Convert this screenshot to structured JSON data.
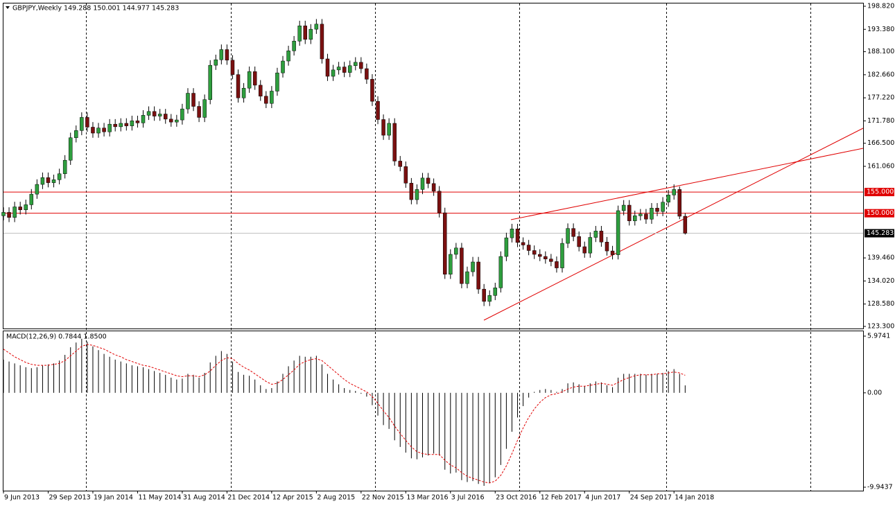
{
  "chart_data": [
    {
      "type": "candlestick",
      "title": "GBPJPY,Weekly  149.288 150.001 144.977 145.283",
      "categories": [
        "9 Jun 2013",
        null,
        null,
        null,
        null,
        null,
        null,
        null,
        "29 Sep 2013",
        null,
        null,
        null,
        null,
        null,
        null,
        null,
        "19 Jan 2014",
        null,
        null,
        null,
        null,
        null,
        null,
        null,
        "11 May 2014",
        null,
        null,
        null,
        null,
        null,
        null,
        null,
        "31 Aug 2014",
        null,
        null,
        null,
        null,
        null,
        null,
        null,
        "21 Dec 2014",
        null,
        null,
        null,
        null,
        null,
        null,
        null,
        "12 Apr 2015",
        null,
        null,
        null,
        null,
        null,
        null,
        null,
        "2 Aug 2015",
        null,
        null,
        null,
        null,
        null,
        null,
        null,
        "22 Nov 2015",
        null,
        null,
        null,
        null,
        null,
        null,
        null,
        "13 Mar 2016",
        null,
        null,
        null,
        null,
        null,
        null,
        null,
        "3 Jul 2016",
        null,
        null,
        null,
        null,
        null,
        null,
        null,
        "23 Oct 2016",
        null,
        null,
        null,
        null,
        null,
        null,
        null,
        "12 Feb 2017",
        null,
        null,
        null,
        null,
        null,
        null,
        null,
        "4 Jun 2017",
        null,
        null,
        null,
        null,
        null,
        null,
        null,
        "24 Sep 2017",
        null,
        null,
        null,
        null,
        null,
        null,
        null,
        "14 Jan 2018",
        null,
        null
      ],
      "open": [
        149.4,
        150.2,
        149.0,
        151.5,
        150.8,
        152.0,
        154.5,
        156.8,
        158.4,
        157.2,
        157.9,
        159.3,
        162.5,
        167.8,
        169.5,
        172.6,
        170.3,
        168.9,
        170.1,
        169.2,
        171.0,
        170.4,
        171.2,
        170.6,
        171.8,
        171.3,
        173.1,
        174.0,
        172.9,
        173.4,
        172.2,
        171.5,
        172.0,
        174.6,
        178.3,
        175.2,
        172.6,
        176.8,
        184.9,
        186.2,
        188.6,
        186.1,
        182.7,
        177.2,
        179.5,
        183.4,
        180.2,
        177.6,
        175.9,
        178.8,
        183.1,
        185.9,
        188.3,
        190.6,
        194.2,
        191.0,
        193.4,
        194.6,
        186.4,
        182.3,
        183.8,
        184.5,
        183.2,
        184.8,
        185.6,
        184.1,
        181.6,
        176.4,
        172.1,
        168.4,
        171.2,
        162.3,
        161.0,
        157.1,
        153.2,
        155.6,
        158.3,
        157.0,
        155.2,
        150.1,
        135.6,
        140.3,
        141.8,
        133.4,
        136.2,
        138.5,
        132.1,
        129.2,
        130.6,
        132.4,
        139.8,
        144.2,
        146.3,
        143.1,
        142.5,
        141.2,
        140.3,
        139.8,
        139.2,
        138.6,
        137.1,
        142.9,
        146.4,
        144.5,
        142.1,
        140.6,
        144.3,
        145.8,
        143.2,
        141.1,
        140.2,
        150.6,
        151.9,
        148.2,
        149.4,
        149.8,
        148.6,
        151.2,
        150.4,
        152.6,
        154.3,
        155.6,
        149.288
      ],
      "high": [
        151.4,
        151.4,
        152.7,
        152.7,
        153.2,
        155.7,
        158.0,
        159.6,
        159.6,
        159.1,
        160.5,
        163.7,
        169.0,
        170.7,
        173.8,
        173.8,
        171.5,
        171.3,
        171.3,
        172.2,
        172.2,
        172.4,
        172.4,
        173.0,
        173.0,
        174.3,
        175.2,
        175.2,
        174.6,
        174.6,
        173.4,
        173.2,
        175.8,
        179.5,
        179.5,
        176.4,
        178.0,
        186.1,
        187.4,
        189.8,
        189.8,
        187.3,
        183.9,
        180.7,
        184.6,
        184.6,
        181.4,
        178.8,
        180.0,
        184.3,
        187.1,
        189.5,
        191.8,
        195.4,
        195.4,
        194.6,
        195.8,
        195.8,
        187.6,
        185.0,
        185.7,
        185.7,
        186.0,
        186.8,
        186.8,
        185.3,
        182.8,
        177.6,
        173.3,
        172.4,
        172.4,
        163.5,
        162.2,
        158.3,
        156.8,
        159.5,
        159.5,
        158.2,
        156.4,
        151.3,
        141.5,
        143.0,
        143.0,
        137.4,
        139.7,
        139.7,
        133.3,
        131.8,
        133.6,
        141.0,
        145.4,
        147.5,
        147.5,
        144.3,
        143.7,
        142.4,
        141.5,
        141.0,
        140.4,
        139.8,
        144.1,
        147.6,
        147.6,
        145.7,
        143.3,
        145.5,
        147.0,
        147.0,
        144.4,
        142.3,
        151.8,
        153.1,
        153.1,
        150.6,
        151.0,
        151.0,
        152.4,
        152.4,
        153.8,
        155.5,
        156.8,
        156.3,
        150.001
      ],
      "low": [
        148.3,
        147.9,
        147.9,
        149.7,
        149.7,
        150.9,
        153.4,
        155.7,
        156.1,
        156.1,
        156.8,
        158.2,
        161.4,
        166.7,
        168.4,
        169.2,
        167.8,
        167.8,
        168.1,
        168.1,
        169.3,
        169.3,
        169.5,
        169.5,
        170.2,
        170.2,
        172.0,
        171.8,
        171.8,
        171.1,
        170.4,
        170.4,
        170.9,
        173.5,
        174.1,
        171.5,
        171.5,
        175.7,
        183.8,
        185.1,
        185.0,
        181.6,
        176.1,
        176.1,
        178.4,
        179.1,
        176.5,
        174.8,
        174.8,
        177.7,
        182.0,
        184.8,
        187.2,
        189.5,
        189.9,
        189.9,
        192.3,
        185.3,
        181.2,
        181.2,
        182.7,
        182.1,
        182.1,
        183.7,
        183.0,
        180.5,
        175.3,
        171.0,
        167.3,
        167.3,
        161.2,
        159.9,
        156.0,
        152.1,
        152.1,
        154.5,
        155.9,
        154.1,
        149.0,
        134.5,
        134.5,
        139.2,
        132.3,
        132.3,
        135.1,
        131.0,
        128.1,
        128.1,
        129.5,
        131.3,
        138.7,
        143.1,
        142.0,
        141.4,
        140.1,
        139.2,
        138.7,
        138.1,
        137.5,
        136.0,
        136.0,
        141.8,
        143.4,
        141.0,
        139.5,
        139.5,
        143.2,
        142.1,
        140.0,
        139.1,
        139.1,
        149.5,
        147.1,
        147.1,
        148.3,
        147.5,
        147.5,
        149.3,
        149.3,
        151.5,
        153.2,
        148.6,
        144.977
      ],
      "close": [
        150.2,
        149.0,
        151.5,
        150.8,
        152.0,
        154.5,
        156.8,
        158.4,
        157.2,
        157.9,
        159.3,
        162.5,
        167.8,
        169.5,
        172.6,
        170.3,
        168.9,
        170.1,
        169.2,
        171.0,
        170.4,
        171.2,
        170.6,
        171.8,
        171.3,
        173.1,
        174.0,
        172.9,
        173.4,
        172.2,
        171.5,
        172.0,
        174.6,
        178.3,
        175.2,
        172.6,
        176.8,
        184.9,
        186.2,
        188.6,
        186.1,
        182.7,
        177.2,
        179.5,
        183.4,
        180.2,
        177.6,
        175.9,
        178.8,
        183.1,
        185.9,
        188.3,
        190.6,
        194.2,
        191.0,
        193.4,
        194.6,
        186.4,
        182.3,
        183.8,
        184.5,
        183.2,
        184.8,
        185.6,
        184.1,
        181.6,
        176.4,
        172.1,
        168.4,
        171.2,
        162.3,
        161.0,
        157.1,
        153.2,
        155.6,
        158.3,
        157.0,
        155.2,
        150.1,
        135.6,
        140.3,
        141.8,
        133.4,
        136.2,
        138.5,
        132.1,
        129.2,
        130.6,
        132.4,
        139.8,
        144.2,
        146.3,
        143.1,
        142.5,
        141.2,
        140.3,
        139.8,
        139.2,
        138.6,
        137.1,
        142.9,
        146.4,
        144.5,
        142.1,
        140.6,
        144.3,
        145.8,
        143.2,
        141.1,
        140.2,
        150.6,
        151.9,
        148.2,
        149.4,
        149.8,
        148.6,
        151.2,
        150.4,
        152.6,
        154.3,
        155.6,
        149.288,
        145.283
      ],
      "up_color": "#2e9e3e",
      "down_color": "#7a1010",
      "ylim": [
        123.3,
        198.82
      ],
      "yticks": [
        {
          "value": 198.82,
          "label": "198.820"
        },
        {
          "value": 193.38,
          "label": "193.380"
        },
        {
          "value": 188.1,
          "label": "188.100"
        },
        {
          "value": 182.66,
          "label": "182.660"
        },
        {
          "value": 177.22,
          "label": "177.220"
        },
        {
          "value": 171.78,
          "label": "171.780"
        },
        {
          "value": 166.5,
          "label": "166.500"
        },
        {
          "value": 161.06,
          "label": "161.060"
        },
        {
          "value": 139.46,
          "label": "139.460"
        },
        {
          "value": 134.02,
          "label": "134.020"
        },
        {
          "value": 128.58,
          "label": "128.580"
        },
        {
          "value": 123.3,
          "label": "123.300"
        }
      ],
      "hlines": [
        {
          "value": 155,
          "label": "155.000",
          "color": "#e00000"
        },
        {
          "value": 150,
          "label": "150.000",
          "color": "#e00000"
        }
      ],
      "last_price": {
        "value": 145.283,
        "label": "145.283",
        "color": "#c0c0c0"
      },
      "grid": false
    },
    {
      "type": "macd",
      "title": "MACD(12,26,9) 0.7844 1.8500",
      "series": [
        {
          "color": "#000000",
          "values": [
            3.5,
            3.3,
            3.1,
            2.9,
            2.7,
            2.6,
            2.7,
            2.9,
            3.0,
            3.1,
            3.4,
            4.0,
            4.8,
            5.3,
            5.7,
            5.4,
            4.9,
            4.5,
            4.1,
            3.8,
            3.5,
            3.3,
            3.1,
            2.9,
            2.8,
            2.7,
            2.5,
            2.3,
            2.1,
            1.9,
            1.6,
            1.4,
            1.5,
            2.0,
            1.9,
            1.6,
            2.1,
            3.2,
            3.9,
            4.4,
            4.1,
            3.3,
            2.2,
            1.9,
            1.8,
            1.4,
            0.8,
            0.4,
            0.5,
            1.2,
            2.0,
            2.8,
            3.4,
            3.9,
            3.8,
            3.8,
            3.9,
            3.0,
            2.0,
            1.4,
            0.9,
            0.5,
            0.3,
            0.2,
            -0.1,
            -0.4,
            -1.3,
            -2.4,
            -3.4,
            -3.8,
            -5.0,
            -5.7,
            -6.3,
            -6.9,
            -7.0,
            -6.8,
            -6.6,
            -6.4,
            -6.6,
            -8.1,
            -8.5,
            -8.4,
            -9.2,
            -9.4,
            -9.3,
            -9.6,
            -9.8,
            -9.5,
            -8.9,
            -7.6,
            -5.9,
            -4.1,
            -2.6,
            -1.4,
            -0.5,
            0.1,
            0.3,
            0.4,
            0.3,
            0.1,
            0.4,
            1.0,
            1.1,
            0.9,
            0.7,
            1.0,
            1.2,
            1.1,
            0.8,
            0.6,
            1.6,
            2.0,
            2.0,
            2.0,
            2.0,
            1.9,
            2.0,
            2.0,
            2.1,
            2.3,
            2.5,
            2.0,
            0.7844
          ]
        },
        {
          "color": "#e00000",
          "values": [
            4.6,
            4.2,
            3.8,
            3.5,
            3.2,
            3.0,
            2.9,
            2.9,
            2.9,
            3.0,
            3.1,
            3.4,
            3.9,
            4.4,
            4.9,
            5.1,
            5.0,
            4.8,
            4.6,
            4.3,
            4.0,
            3.8,
            3.5,
            3.3,
            3.1,
            2.9,
            2.8,
            2.6,
            2.4,
            2.2,
            2.0,
            1.8,
            1.7,
            1.8,
            1.8,
            1.7,
            1.9,
            2.3,
            2.9,
            3.4,
            3.7,
            3.6,
            3.1,
            2.7,
            2.4,
            2.0,
            1.6,
            1.2,
            0.9,
            1.0,
            1.4,
            1.9,
            2.4,
            3.0,
            3.3,
            3.5,
            3.6,
            3.4,
            2.9,
            2.4,
            1.9,
            1.4,
            1.0,
            0.7,
            0.4,
            0.1,
            -0.4,
            -1.1,
            -1.9,
            -2.6,
            -3.5,
            -4.3,
            -5.0,
            -5.7,
            -6.2,
            -6.4,
            -6.5,
            -6.5,
            -6.5,
            -7.1,
            -7.6,
            -7.9,
            -8.4,
            -8.8,
            -9.0,
            -9.2,
            -9.4,
            -9.5,
            -9.3,
            -8.7,
            -7.7,
            -6.4,
            -5.0,
            -3.7,
            -2.6,
            -1.7,
            -1.0,
            -0.5,
            -0.2,
            -0.1,
            0.1,
            0.4,
            0.6,
            0.7,
            0.7,
            0.8,
            0.9,
            1.0,
            0.9,
            0.8,
            1.1,
            1.4,
            1.6,
            1.8,
            1.9,
            1.9,
            1.9,
            2.0,
            2.0,
            2.1,
            2.2,
            2.1,
            1.85
          ]
        }
      ],
      "ylim": [
        -9.9437,
        5.9741
      ],
      "yticks": [
        5.9741,
        {
          "value": 0,
          "label": "0.00"
        },
        -9.9437
      ]
    }
  ]
}
